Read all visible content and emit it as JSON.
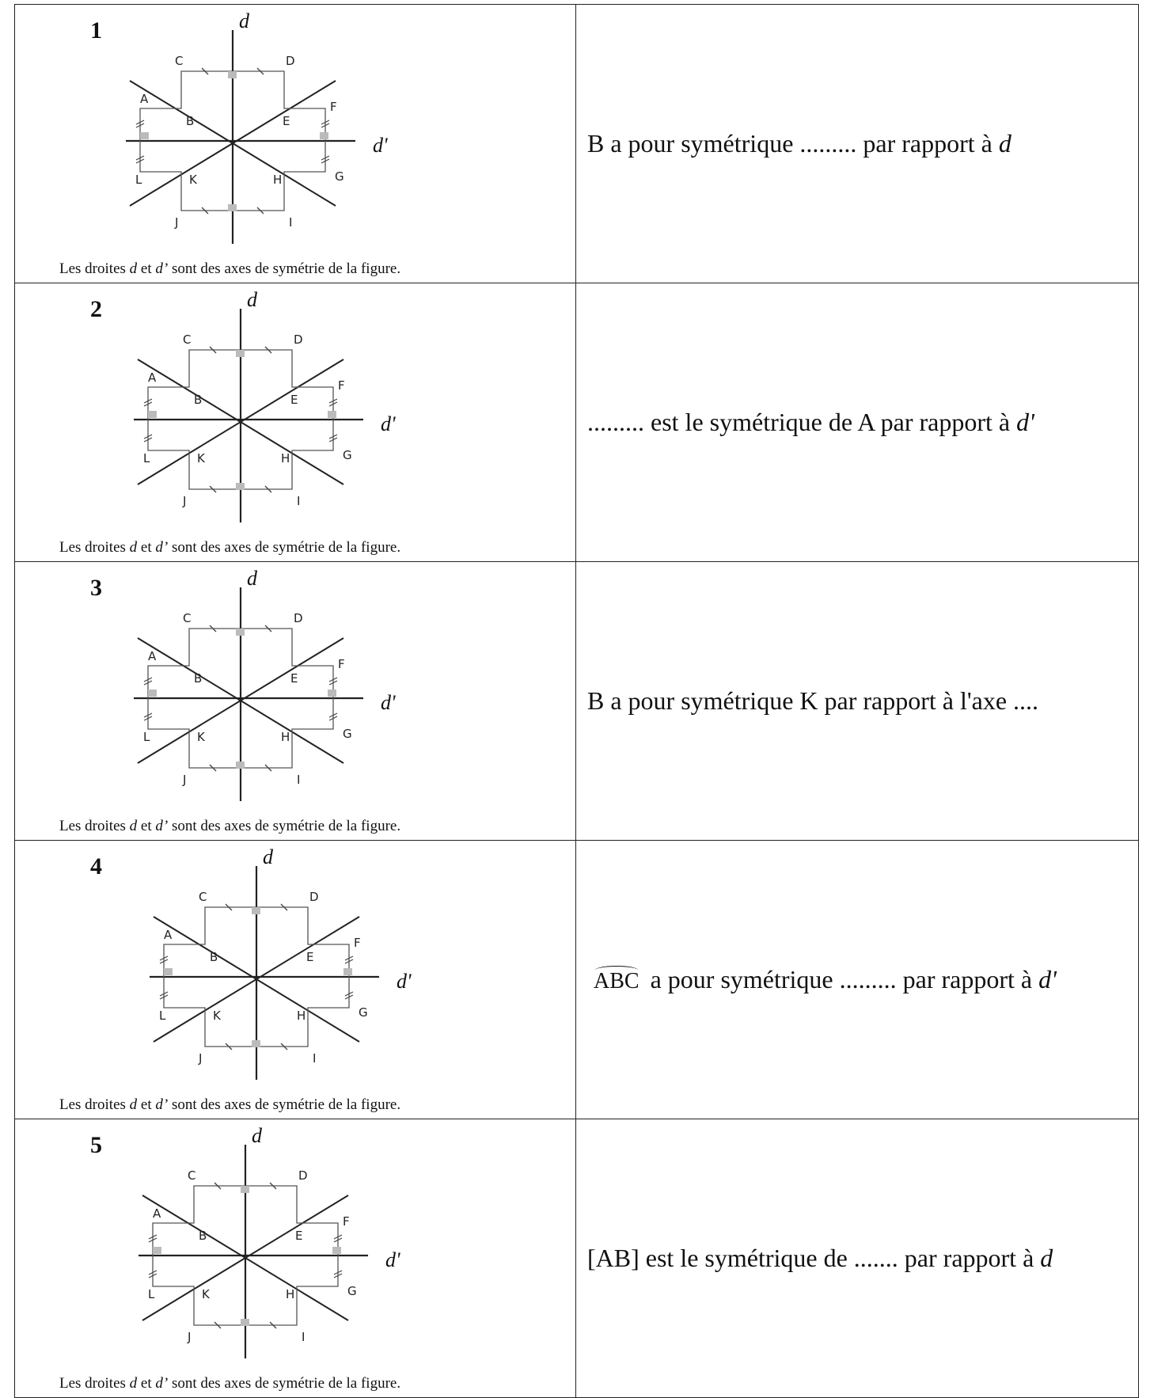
{
  "rows": [
    {
      "number": "1",
      "caption": {
        "a": "Les droites ",
        "d": "d",
        "b": " et ",
        "dp": "d’",
        "c": " sont des axes de symétrie de la figure."
      },
      "question": {
        "pre": "B a pour symétrique ......... par rapport à ",
        "var": "d",
        "post": ""
      }
    },
    {
      "number": "2",
      "caption": {
        "a": "Les droites ",
        "d": "d",
        "b": " et ",
        "dp": "d’",
        "c": " sont des axes de symétrie de la figure."
      },
      "question": {
        "pre": "......... est le symétrique de A par rapport à ",
        "var": "d'",
        "post": ""
      }
    },
    {
      "number": "3",
      "caption": {
        "a": "Les droites ",
        "d": "d",
        "b": " et ",
        "dp": "d’",
        "c": " sont des axes de symétrie de la figure."
      },
      "question": {
        "pre": "B a pour symétrique K par rapport à l'axe ....",
        "var": "",
        "post": ""
      }
    },
    {
      "number": "4",
      "caption": {
        "a": "Les droites ",
        "d": "d",
        "b": " et ",
        "dp": "d’",
        "c": " sont des axes de symétrie de la figure."
      },
      "question": {
        "arc": "ABC",
        "pre": " a pour symétrique ......... par rapport à ",
        "var": "d'",
        "post": ""
      }
    },
    {
      "number": "5",
      "caption": {
        "a": "Les droites ",
        "d": "d",
        "b": " et ",
        "dp": "d’",
        "c": " sont des axes de symétrie de la figure."
      },
      "question": {
        "pre": "[AB] est le symétrique de .......  par rapport à ",
        "var": "d",
        "post": ""
      }
    }
  ],
  "figure": {
    "axis_v_label": "d",
    "axis_h_label": "d'",
    "points": [
      "A",
      "B",
      "C",
      "D",
      "E",
      "F",
      "G",
      "H",
      "I",
      "J",
      "K",
      "L"
    ]
  }
}
